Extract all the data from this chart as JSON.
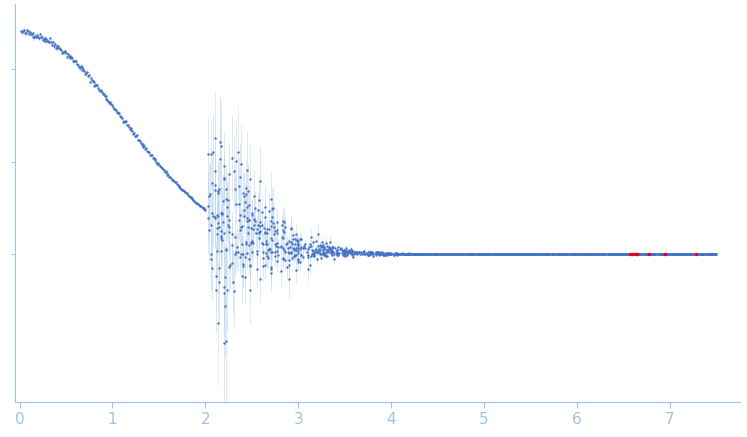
{
  "xlabel": "",
  "ylabel": "",
  "xlim": [
    -0.05,
    7.75
  ],
  "x_ticks": [
    0,
    1,
    2,
    3,
    4,
    5,
    6,
    7
  ],
  "dot_color_main": "#4472C4",
  "dot_color_outlier": "#E8000A",
  "error_color": "#BDD7EE",
  "axis_color": "#9DC3E6",
  "tick_color": "#9DC3E6",
  "background_color": "#FFFFFF",
  "dot_size": 3,
  "seed": 42
}
